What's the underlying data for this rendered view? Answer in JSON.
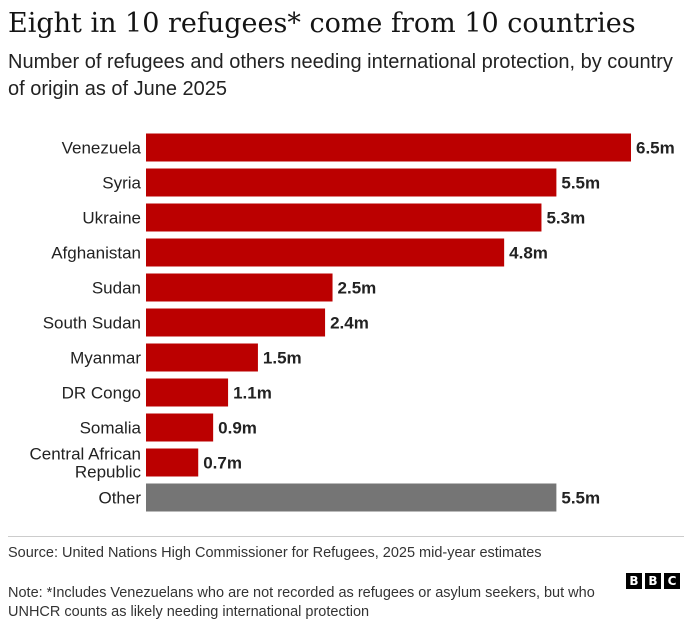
{
  "title": "Eight in 10 refugees* come from 10 countries",
  "subtitle": "Number of refugees and others needing international protection, by country of origin as of June 2025",
  "footer": {
    "source": "Source: United Nations High Commissioner for Refugees, 2025 mid-year estimates",
    "note": "Note: *Includes Venezuelans who are not recorded as refugees or asylum seekers, but who UNHCR counts as likely needing international protection",
    "logo": [
      "B",
      "B",
      "C"
    ]
  },
  "colors": {
    "bar": "#bb0000",
    "other": "#757575"
  },
  "chart_data": {
    "type": "bar",
    "orientation": "horizontal",
    "categories": [
      "Venezuela",
      "Syria",
      "Ukraine",
      "Afghanistan",
      "Sudan",
      "South Sudan",
      "Myanmar",
      "DR Congo",
      "Somalia",
      "Central African Republic",
      "Other"
    ],
    "values": [
      6.5,
      5.5,
      5.3,
      4.8,
      2.5,
      2.4,
      1.5,
      1.1,
      0.9,
      0.7,
      5.5
    ],
    "value_labels": [
      "6.5m",
      "5.5m",
      "5.3m",
      "4.8m",
      "2.5m",
      "2.4m",
      "1.5m",
      "1.1m",
      "0.9m",
      "0.7m",
      "5.5m"
    ],
    "unit": "m",
    "xlim": [
      0,
      6.5
    ],
    "grid": false,
    "legend": "none",
    "highlight_gray": [
      "Other"
    ]
  }
}
